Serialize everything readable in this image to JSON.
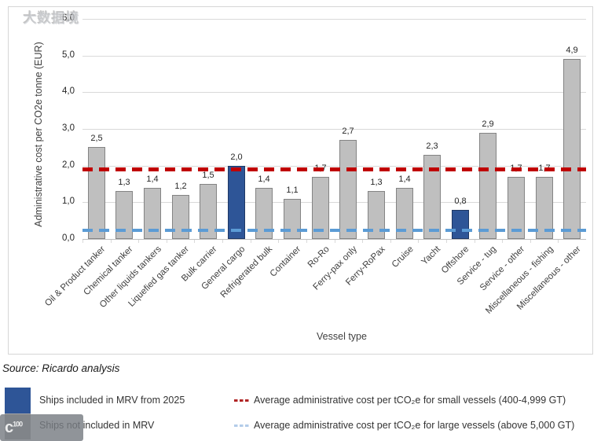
{
  "source": "Source: Ricardo analysis",
  "watermark": {
    "logo": "c",
    "logo_sup": "100",
    "text": "大数据境"
  },
  "chart_data": {
    "type": "bar",
    "title": "",
    "xlabel": "Vessel type",
    "ylabel": "Administrative cost per CO2e tonne (EUR)",
    "ylim": [
      0,
      6
    ],
    "ytick_labels": [
      "0,0",
      "1,0",
      "2,0",
      "3,0",
      "4,0",
      "5,0",
      "6,0"
    ],
    "grid": true,
    "legend_position": "bottom",
    "categories": [
      "Oil & Product tanker",
      "Chemical tanker",
      "Other liquids tankers",
      "Liquefied gas tanker",
      "Bulk carrier",
      "General cargo",
      "Refrigerated bulk",
      "Container",
      "Ro-Ro",
      "Ferry-pax only",
      "Ferry-RoPax",
      "Cruise",
      "Yacht",
      "Offshore",
      "Service - tug",
      "Service - other",
      "Miscellaneous - fishing",
      "Miscellaneous - other"
    ],
    "values": [
      2.5,
      1.3,
      1.4,
      1.2,
      1.5,
      2.0,
      1.4,
      1.1,
      1.7,
      2.7,
      1.3,
      1.4,
      2.3,
      0.8,
      2.9,
      1.7,
      1.7,
      4.9
    ],
    "value_labels": [
      "2,5",
      "1,3",
      "1,4",
      "1,2",
      "1,5",
      "2,0",
      "1,4",
      "1,1",
      "1,7",
      "2,7",
      "1,3",
      "1,4",
      "2,3",
      "0,8",
      "2,9",
      "1,7",
      "1,7",
      "4,9"
    ],
    "highlighted_indices": [
      5,
      13
    ],
    "bar_colors": {
      "default": "#bfbfbf",
      "default_border": "#848484",
      "highlight": "#2e5597",
      "highlight_border": "#1f3864"
    },
    "reference_lines": [
      {
        "name": "small-vessels-average",
        "value": 1.9,
        "color": "#c00000",
        "style": "dashed",
        "thickness": 5
      },
      {
        "name": "large-vessels-average",
        "value": 0.23,
        "color": "#5b9bd5",
        "style": "dashed",
        "thickness": 4
      }
    ]
  },
  "legend": {
    "items": [
      {
        "swatch": "blue-square",
        "color": "#2e5597",
        "label": "Ships included in MRV from 2025"
      },
      {
        "swatch": "gray-square",
        "color": "#a6a6a6",
        "label": "Ships not included in MRV"
      },
      {
        "swatch": "red-dashes",
        "color": "#b02424",
        "label": "Average administrative cost per tCO₂e for small vessels (400-4,999 GT)"
      },
      {
        "swatch": "blue-dashes",
        "color": "#b3cce9",
        "label": "Average administrative cost per tCO₂e for large vessels (above 5,000 GT)"
      }
    ]
  }
}
